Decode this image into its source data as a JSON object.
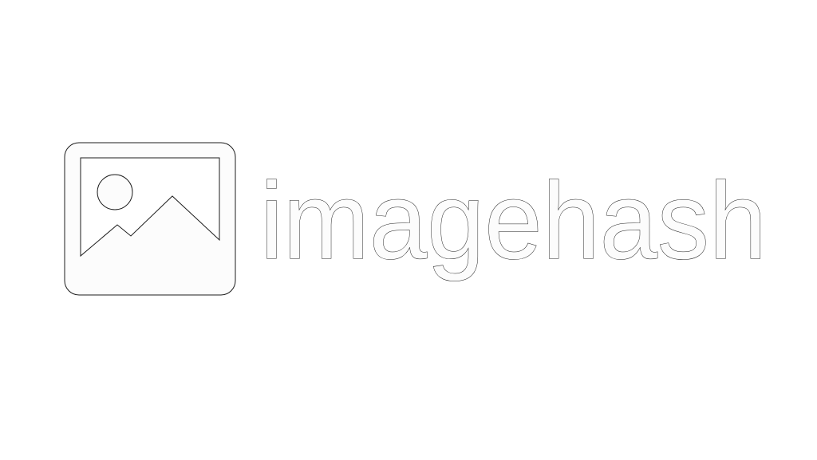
{
  "brand": {
    "name": "imagehash",
    "logo_icon": "image-icon",
    "colors": {
      "background": "#ffffff",
      "fill": "#fcfcfc",
      "outline": "#1c1c1c"
    }
  }
}
